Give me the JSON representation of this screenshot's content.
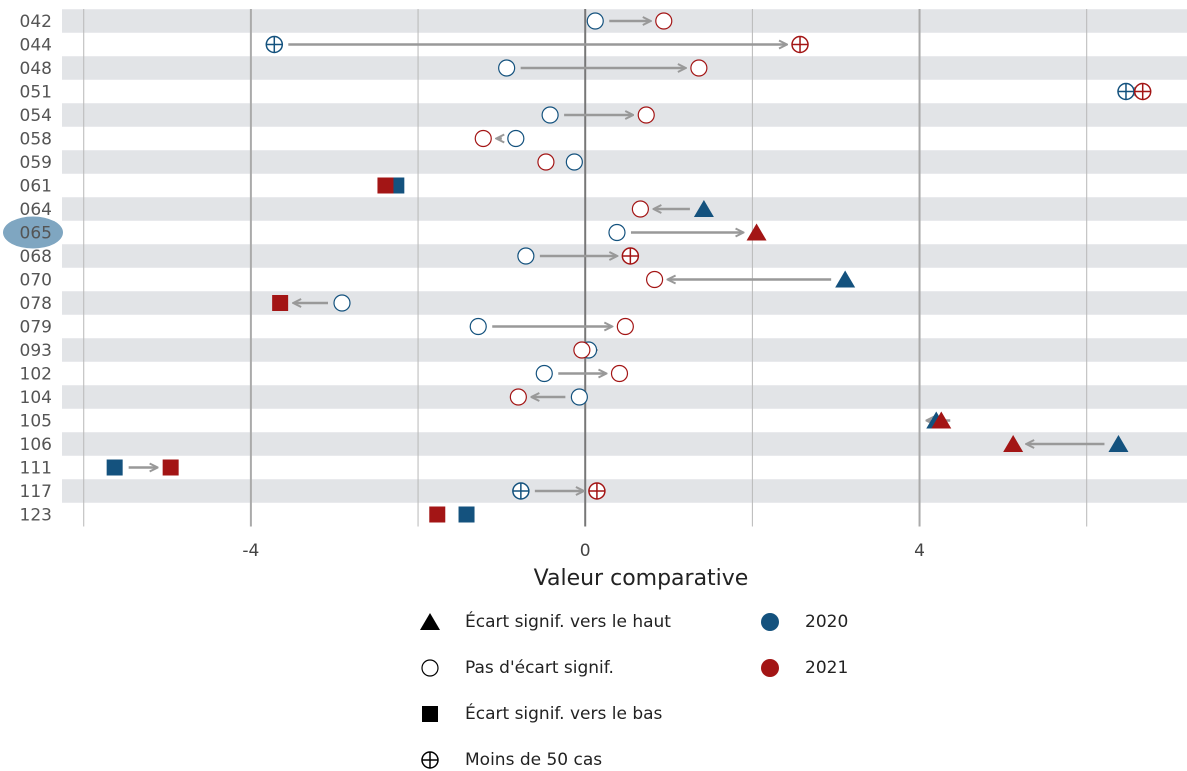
{
  "chart_data": {
    "type": "arrow-dot",
    "x_label": "Valeur comparative",
    "categories": [
      "042",
      "044",
      "048",
      "051",
      "054",
      "058",
      "059",
      "061",
      "064",
      "065",
      "068",
      "070",
      "078",
      "079",
      "093",
      "102",
      "104",
      "105",
      "106",
      "111",
      "117",
      "123"
    ],
    "highlight_index": 9,
    "xlim": [
      -6.26,
      7.2
    ],
    "xticks": [
      -4,
      0,
      4
    ],
    "minor_xticks": [
      -6,
      -2,
      2,
      6
    ],
    "grid": true,
    "series": [
      {
        "name": "2020",
        "color": "#14527e",
        "values": [
          0.12,
          -3.72,
          -0.94,
          6.47,
          -0.42,
          -0.83,
          -0.13,
          -2.26,
          1.42,
          0.38,
          -0.71,
          3.11,
          -2.91,
          -1.28,
          0.04,
          -0.49,
          -0.07,
          4.2,
          6.38,
          -5.63,
          -0.77,
          -1.42
        ],
        "markers": [
          "none",
          "few",
          "none",
          "few",
          "none",
          "none",
          "none",
          "down",
          "up",
          "none",
          "none",
          "up",
          "none",
          "none",
          "none",
          "none",
          "none",
          "up",
          "up",
          "down",
          "few",
          "down"
        ]
      },
      {
        "name": "2021",
        "color": "#a31515",
        "values": [
          0.94,
          2.57,
          1.36,
          6.67,
          0.73,
          -1.22,
          -0.47,
          -2.39,
          0.66,
          2.05,
          0.54,
          0.83,
          -3.65,
          0.48,
          -0.04,
          0.41,
          -0.8,
          4.26,
          5.12,
          -4.96,
          0.14,
          -1.77
        ],
        "markers": [
          "none",
          "few",
          "none",
          "few",
          "none",
          "none",
          "none",
          "down",
          "none",
          "up",
          "few",
          "none",
          "down",
          "none",
          "none",
          "none",
          "none",
          "up",
          "up",
          "down",
          "few",
          "down"
        ]
      }
    ],
    "marker_legend": [
      {
        "key": "up",
        "label": "Écart signif. vers le haut"
      },
      {
        "key": "none",
        "label": "Pas d'écart signif."
      },
      {
        "key": "down",
        "label": "Écart signif. vers le bas"
      },
      {
        "key": "few",
        "label": "Moins de 50 cas"
      }
    ]
  }
}
